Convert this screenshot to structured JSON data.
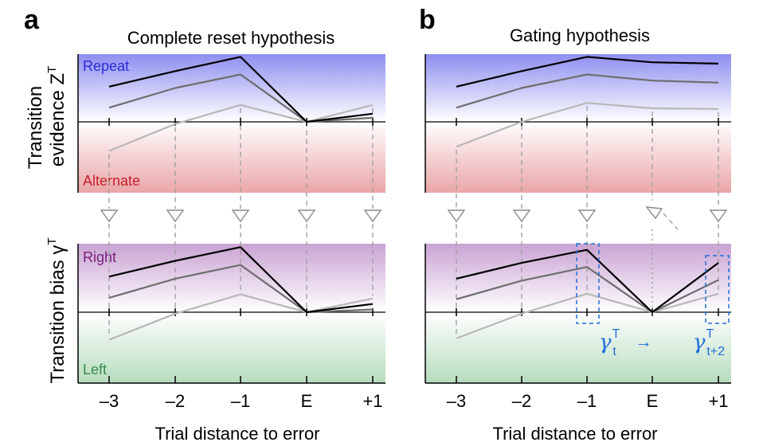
{
  "figure": {
    "panel_a_letter": "a",
    "panel_b_letter": "b",
    "panel_a_title": "Complete reset hypothesis",
    "panel_b_title": "Gating hypothesis",
    "ylabel_top_line1": "Transition",
    "ylabel_top_line2": "evidence Z",
    "ylabel_top_sup": "T",
    "ylabel_bottom": "Transition bias γ",
    "ylabel_bottom_sup": "T",
    "label_repeat": "Repeat",
    "label_alternate": "Alternate",
    "label_right": "Right",
    "label_left": "Left",
    "xlabel": "Trial distance to error",
    "annotation_gamma": "γ",
    "annotation_sup": "T",
    "annotation_sub_t": "t",
    "annotation_sub_t2": "t+2",
    "annotation_arrow": "→"
  },
  "colors": {
    "repeat": "#2a2ad6",
    "alternate": "#c8202a",
    "right": "#7a1e7a",
    "left": "#3a8a4a",
    "annotation": "#1f6fd8",
    "series": [
      "#000000",
      "#6e6e6e",
      "#b8b8b8"
    ]
  },
  "chart_data": [
    {
      "type": "line",
      "panel": "a",
      "row": "evidence",
      "title": "Complete reset hypothesis",
      "x": [
        "-3",
        "-2",
        "-1",
        "E",
        "+1"
      ],
      "ylim": [
        -1,
        1
      ],
      "series": [
        {
          "values": [
            0.52,
            0.75,
            0.96,
            0.0,
            0.12
          ]
        },
        {
          "values": [
            0.21,
            0.5,
            0.7,
            0.0,
            0.06
          ]
        },
        {
          "values": [
            -0.41,
            -0.03,
            0.25,
            0.0,
            0.25
          ]
        }
      ]
    },
    {
      "type": "line",
      "panel": "b",
      "row": "evidence",
      "title": "Gating hypothesis",
      "x": [
        "-3",
        "-2",
        "-1",
        "E",
        "+1"
      ],
      "ylim": [
        -1,
        1
      ],
      "series": [
        {
          "values": [
            0.52,
            0.75,
            0.96,
            0.88,
            0.86
          ]
        },
        {
          "values": [
            0.21,
            0.5,
            0.7,
            0.61,
            0.58
          ]
        },
        {
          "values": [
            -0.35,
            0.0,
            0.28,
            0.2,
            0.19
          ]
        }
      ]
    },
    {
      "type": "line",
      "panel": "a",
      "row": "bias",
      "x": [
        "-3",
        "-2",
        "-1",
        "E",
        "+1"
      ],
      "xticklabels": [
        "–3",
        "–2",
        "–1",
        "E",
        "+1"
      ],
      "ylim": [
        -1,
        1
      ],
      "series": [
        {
          "values": [
            0.52,
            0.75,
            0.95,
            0.0,
            0.12
          ]
        },
        {
          "values": [
            0.21,
            0.49,
            0.69,
            0.0,
            0.04
          ]
        },
        {
          "values": [
            -0.39,
            -0.02,
            0.26,
            0.0,
            0.2
          ]
        }
      ]
    },
    {
      "type": "line",
      "panel": "b",
      "row": "bias",
      "x": [
        "-3",
        "-2",
        "-1",
        "E",
        "+1"
      ],
      "xticklabels": [
        "–3",
        "–2",
        "–1",
        "E",
        "+1"
      ],
      "ylim": [
        -1,
        1
      ],
      "series": [
        {
          "values": [
            0.49,
            0.72,
            0.91,
            0.0,
            0.72
          ]
        },
        {
          "values": [
            0.19,
            0.46,
            0.66,
            0.0,
            0.47
          ]
        },
        {
          "values": [
            -0.37,
            -0.02,
            0.27,
            0.0,
            0.27
          ]
        }
      ]
    }
  ]
}
